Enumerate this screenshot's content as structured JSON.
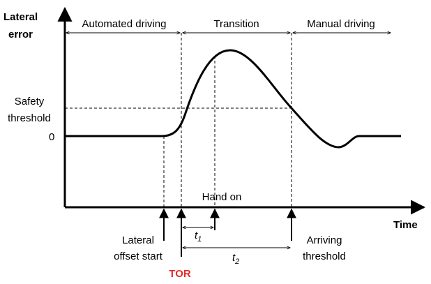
{
  "y_axis_label": [
    "Lateral",
    "error"
  ],
  "x_axis_label": "Time",
  "phases": [
    "Automated driving",
    "Transition",
    "Manual driving"
  ],
  "safety_threshold": [
    "Safety",
    "threshold"
  ],
  "zero_label": "0",
  "hand_on": "Hand on",
  "lateral_offset_start": [
    "Lateral",
    "offset start"
  ],
  "tor": "TOR",
  "arriving_threshold": [
    "Arriving",
    "threshold"
  ],
  "t1": {
    "main": "t",
    "sub": "1"
  },
  "t2": {
    "main": "t",
    "sub": "2"
  }
}
